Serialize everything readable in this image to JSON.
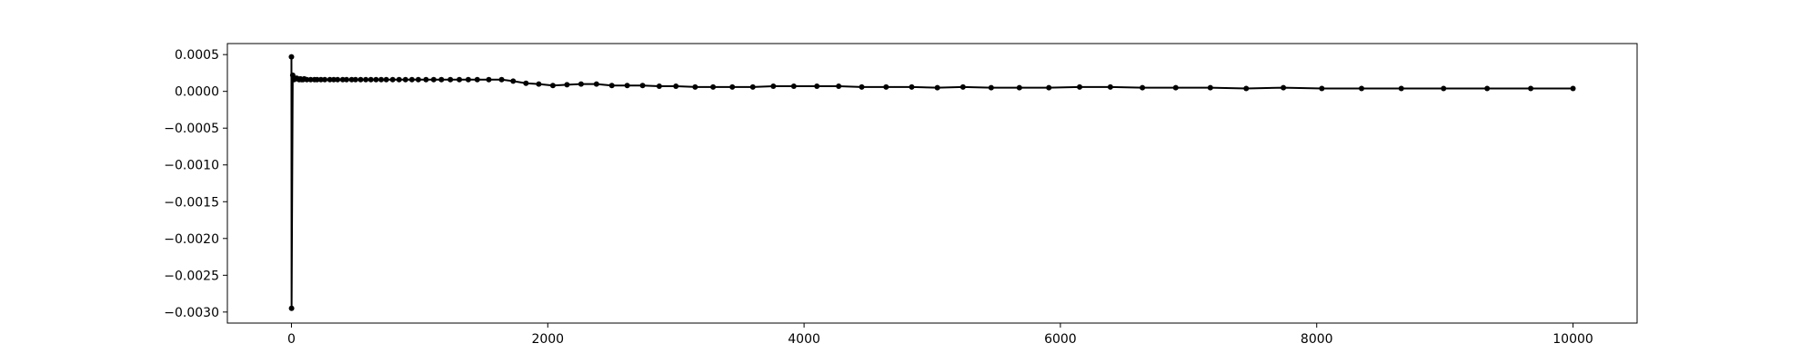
{
  "chart_data": {
    "type": "line",
    "title": "",
    "xlabel": "",
    "ylabel": "",
    "xlim": [
      -500,
      10500
    ],
    "ylim": [
      -0.00315,
      0.00065
    ],
    "grid": false,
    "legend": "none",
    "x_ticks": [
      {
        "value": 0,
        "label": "0"
      },
      {
        "value": 2000,
        "label": "2000"
      },
      {
        "value": 4000,
        "label": "4000"
      },
      {
        "value": 6000,
        "label": "6000"
      },
      {
        "value": 8000,
        "label": "8000"
      },
      {
        "value": 10000,
        "label": "10000"
      }
    ],
    "y_ticks": [
      {
        "value": 0.0005,
        "label": "0.0005"
      },
      {
        "value": 0.0,
        "label": "0.0000"
      },
      {
        "value": -0.0005,
        "label": "−0.0005"
      },
      {
        "value": -0.001,
        "label": "−0.0010"
      },
      {
        "value": -0.0015,
        "label": "−0.0015"
      },
      {
        "value": -0.002,
        "label": "−0.0020"
      },
      {
        "value": -0.0025,
        "label": "−0.0025"
      },
      {
        "value": -0.003,
        "label": "−0.0030"
      }
    ],
    "series": [
      {
        "color": "#000000",
        "marker": "circle",
        "x": [
          0,
          1,
          10,
          20,
          30,
          40,
          50,
          60,
          70,
          80,
          90,
          100,
          120,
          150,
          180,
          200,
          230,
          260,
          300,
          330,
          360,
          400,
          430,
          470,
          500,
          540,
          580,
          620,
          660,
          700,
          740,
          790,
          840,
          890,
          940,
          990,
          1050,
          1110,
          1170,
          1240,
          1310,
          1380,
          1450,
          1540,
          1640,
          1730,
          1830,
          1930,
          2040,
          2150,
          2260,
          2380,
          2500,
          2620,
          2740,
          2870,
          3000,
          3150,
          3290,
          3440,
          3600,
          3760,
          3920,
          4100,
          4270,
          4450,
          4640,
          4840,
          5040,
          5240,
          5460,
          5680,
          5910,
          6150,
          6390,
          6640,
          6900,
          7170,
          7450,
          7740,
          8040,
          8350,
          8660,
          8990,
          9330,
          9670,
          10000
        ],
        "y": [
          0.00047,
          -0.00295,
          0.00022,
          0.00016,
          0.00017,
          0.00018,
          0.00017,
          0.00016,
          0.00017,
          0.00016,
          0.00016,
          0.00017,
          0.00016,
          0.00016,
          0.00016,
          0.00016,
          0.00016,
          0.00016,
          0.00016,
          0.00016,
          0.00016,
          0.00016,
          0.00016,
          0.00016,
          0.00016,
          0.00016,
          0.00016,
          0.00016,
          0.00016,
          0.00016,
          0.00016,
          0.00016,
          0.00016,
          0.00016,
          0.00016,
          0.00016,
          0.00016,
          0.00016,
          0.00016,
          0.00016,
          0.00016,
          0.00016,
          0.00016,
          0.00016,
          0.00016,
          0.00014,
          0.00011,
          0.0001,
          8e-05,
          9e-05,
          0.0001,
          0.0001,
          8e-05,
          8e-05,
          8e-05,
          7e-05,
          7e-05,
          6e-05,
          6e-05,
          6e-05,
          6e-05,
          7e-05,
          7e-05,
          7e-05,
          7e-05,
          6e-05,
          6e-05,
          6e-05,
          5e-05,
          6e-05,
          5e-05,
          5e-05,
          5e-05,
          6e-05,
          6e-05,
          5e-05,
          5e-05,
          5e-05,
          4e-05,
          5e-05,
          4e-05,
          4e-05,
          4e-05,
          4e-05,
          4e-05,
          4e-05,
          4e-05
        ]
      }
    ]
  }
}
